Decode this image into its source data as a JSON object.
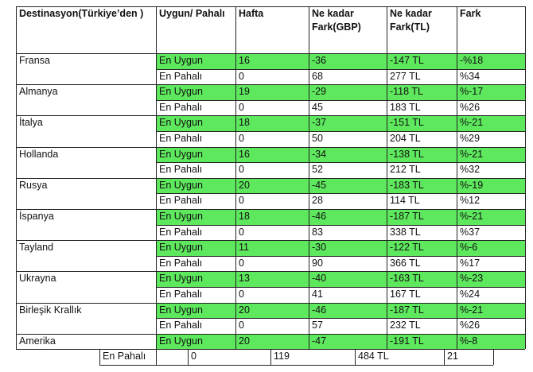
{
  "table": {
    "headers": [
      "Destinasyon(Türkiye’den )",
      "Uygun/ Pahalı",
      "Hafta",
      "Ne kadar Fark(GBP)",
      "Ne kadar Fark(TL)",
      "Fark"
    ],
    "rows": [
      {
        "country": "Fransa",
        "cheap": {
          "label": "En Uygun",
          "week": "16",
          "gbp": "-36",
          "tl": "-147 TL",
          "pct": "-%18"
        },
        "exp": {
          "label": "En Pahalı",
          "week": "0",
          "gbp": "68",
          "tl": "277 TL",
          "pct": "%34"
        }
      },
      {
        "country": "Almanya",
        "cheap": {
          "label": "En Uygun",
          "week": "19",
          "gbp": "-29",
          "tl": "-118 TL",
          "pct": "%-17"
        },
        "exp": {
          "label": "En Pahalı",
          "week": "0",
          "gbp": "45",
          "tl": "183 TL",
          "pct": "%26"
        }
      },
      {
        "country": "İtalya",
        "cheap": {
          "label": "En Uygun",
          "week": "18",
          "gbp": "-37",
          "tl": "-151 TL",
          "pct": "%-21"
        },
        "exp": {
          "label": "En Pahalı",
          "week": "0",
          "gbp": "50",
          "tl": "204 TL",
          "pct": "%29"
        }
      },
      {
        "country": "Hollanda",
        "cheap": {
          "label": "En Uygun",
          "week": "16",
          "gbp": "-34",
          "tl": "-138 TL",
          "pct": "%-21"
        },
        "exp": {
          "label": "En Pahalı",
          "week": "0",
          "gbp": "52",
          "tl": "212 TL",
          "pct": "%32"
        }
      },
      {
        "country": "Rusya",
        "cheap": {
          "label": "En Uygun",
          "week": "20",
          "gbp": "-45",
          "tl": "-183 TL",
          "pct": "%-19"
        },
        "exp": {
          "label": "En Pahalı",
          "week": "0",
          "gbp": "28",
          "tl": "114 TL",
          "pct": "%12"
        }
      },
      {
        "country": "İspanya",
        "cheap": {
          "label": "En Uygun",
          "week": "18",
          "gbp": "-46",
          "tl": "-187 TL",
          "pct": "%-21"
        },
        "exp": {
          "label": "En Pahalı",
          "week": "0",
          "gbp": "83",
          "tl": "338 TL",
          "pct": "%37"
        }
      },
      {
        "country": "Tayland",
        "cheap": {
          "label": "En Uygun",
          "week": "11",
          "gbp": "-30",
          "tl": "-122 TL",
          "pct": "%-6"
        },
        "exp": {
          "label": "En Pahalı",
          "week": "0",
          "gbp": "90",
          "tl": "366 TL",
          "pct": "%17"
        }
      },
      {
        "country": "Ukrayna",
        "cheap": {
          "label": "En Uygun",
          "week": "13",
          "gbp": "-40",
          "tl": "-163 TL",
          "pct": "%-23"
        },
        "exp": {
          "label": "En Pahalı",
          "week": "0",
          "gbp": "41",
          "tl": "167 TL",
          "pct": "%24"
        }
      },
      {
        "country": "Birleşik Krallık",
        "cheap": {
          "label": "En Uygun",
          "week": "20",
          "gbp": "-46",
          "tl": "-187 TL",
          "pct": "%-21"
        },
        "exp": {
          "label": "En Pahalı",
          "week": "0",
          "gbp": "57",
          "tl": "232 TL",
          "pct": "%26"
        }
      },
      {
        "country": "Amerika",
        "cheap": {
          "label": "En Uygun",
          "week": "20",
          "gbp": "-47",
          "tl": "-191 TL",
          "pct": "%-8"
        },
        "exp": {
          "label": "En Pahalı",
          "week": "0",
          "gbp": "119",
          "tl": "484 TL",
          "pct": "21"
        }
      }
    ]
  },
  "colors": {
    "highlight": "#5ee85e",
    "border": "#222222"
  }
}
